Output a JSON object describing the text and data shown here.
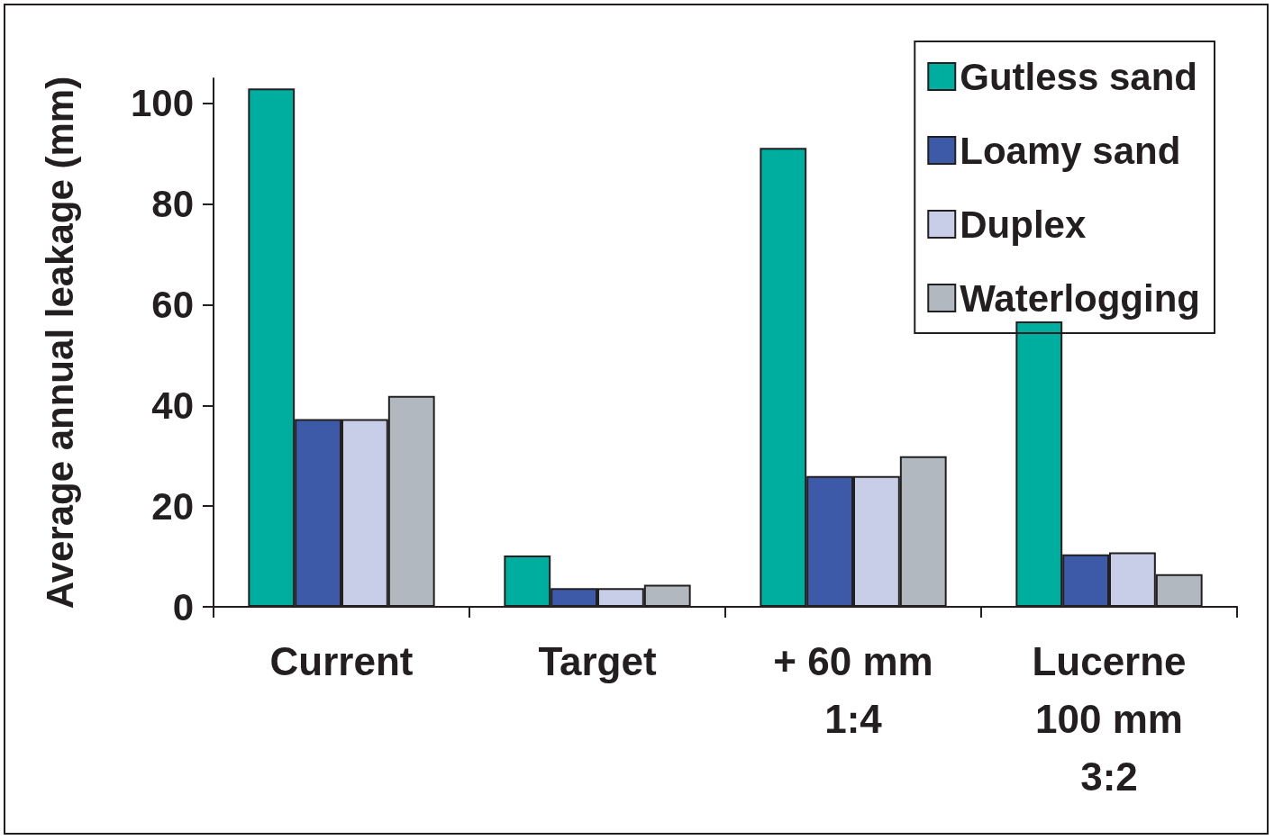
{
  "chart_data": {
    "type": "bar",
    "ylabel": "Average annual leakage (mm)",
    "categories": [
      "Current",
      "Target",
      "+ 60 mm\n1:4",
      "Lucerne\n100 mm\n3:2"
    ],
    "series": [
      {
        "name": "Gutless sand",
        "color": "#00ae9f",
        "values": [
          103,
          10.2,
          91.2,
          56.7
        ]
      },
      {
        "name": "Loamy sand",
        "color": "#3c5aa8",
        "values": [
          37.3,
          3.7,
          26,
          10.4
        ]
      },
      {
        "name": "Duplex",
        "color": "#c8cde8",
        "values": [
          37.3,
          3.7,
          26,
          10.8
        ]
      },
      {
        "name": "Waterlogging",
        "color": "#b1b8bf",
        "values": [
          41.9,
          4.4,
          29.9,
          6.5
        ]
      }
    ],
    "ylim": [
      0,
      105
    ],
    "yticks": [
      0,
      20,
      40,
      60,
      80,
      100
    ],
    "grid": false,
    "legend": "top right"
  }
}
